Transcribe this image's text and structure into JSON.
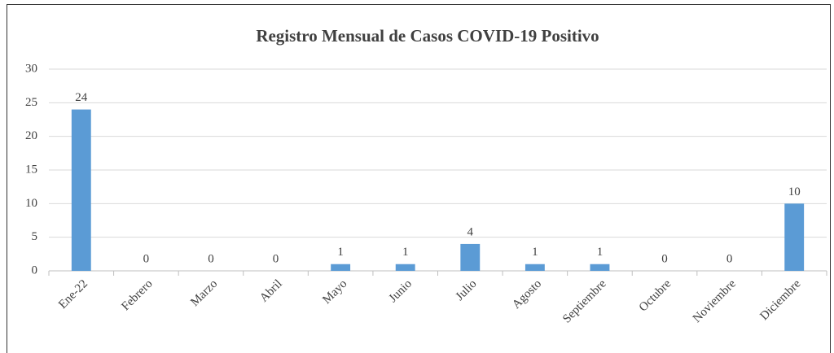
{
  "chart_data": {
    "type": "bar",
    "title": "Registro Mensual de Casos COVID-19 Positivo",
    "categories": [
      "Ene-22",
      "Febrero",
      "Marzo",
      "Abril",
      "Mayo",
      "Junio",
      "Julio",
      "Agosto",
      "Septiembre",
      "Octubre",
      "Noviembre",
      "Diciembre"
    ],
    "values": [
      24,
      0,
      0,
      0,
      1,
      1,
      4,
      1,
      1,
      0,
      0,
      10
    ],
    "color": "#5b9bd5",
    "ylim": [
      0,
      30
    ],
    "yticks": [
      0,
      5,
      10,
      15,
      20,
      25,
      30
    ],
    "grid": true
  }
}
